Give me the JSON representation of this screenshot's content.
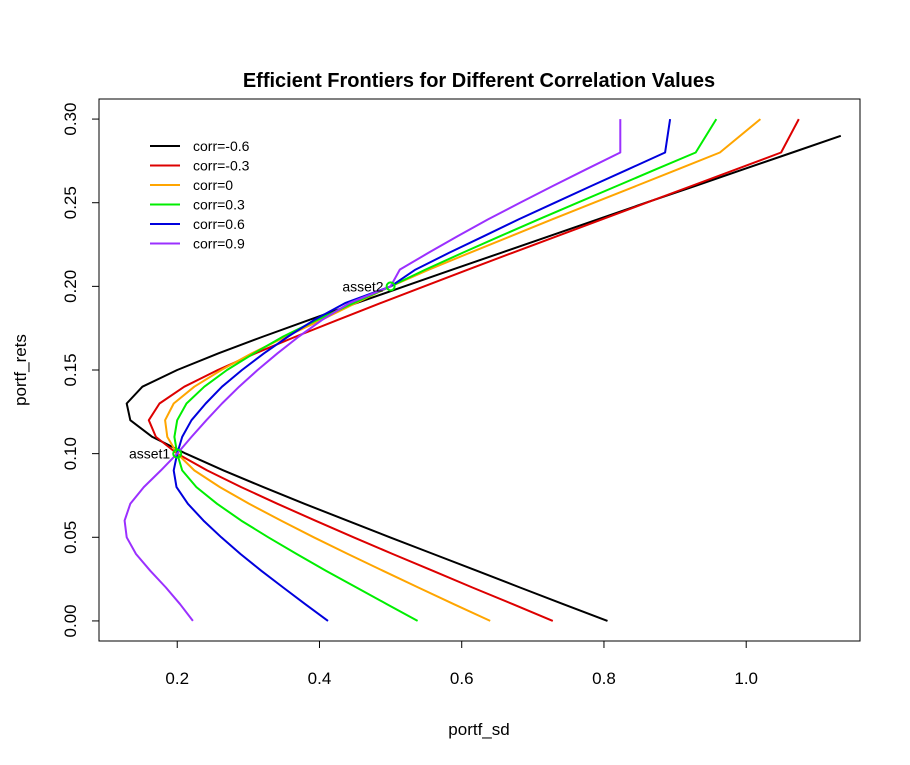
{
  "chart_data": {
    "type": "line",
    "title": "Efficient Frontiers for Different Correlation Values",
    "xlabel": "portf_sd",
    "ylabel": "portf_rets",
    "xlim": [
      0.09,
      1.16
    ],
    "ylim": [
      -0.012,
      0.312
    ],
    "x_ticks": [
      0.2,
      0.4,
      0.6,
      0.8,
      1.0
    ],
    "x_tick_labels": [
      "0.2",
      "0.4",
      "0.6",
      "0.8",
      "1.0"
    ],
    "y_ticks": [
      0.0,
      0.05,
      0.1,
      0.15,
      0.2,
      0.25,
      0.3
    ],
    "y_tick_labels": [
      "0.00",
      "0.05",
      "0.10",
      "0.15",
      "0.20",
      "0.25",
      "0.30"
    ],
    "grid": false,
    "legend": "top-left",
    "series": [
      {
        "name": "corr=-0.6",
        "color": "#000000",
        "x": [
          0.805,
          0.743,
          0.682,
          0.621,
          0.56,
          0.499,
          0.439,
          0.379,
          0.321,
          0.265,
          0.212,
          0.165,
          0.134,
          0.129,
          0.151,
          0.2,
          0.258,
          0.321,
          0.386,
          0.452,
          0.519,
          0.587,
          0.655,
          0.723,
          0.791,
          0.859,
          0.928,
          0.996,
          1.065,
          1.133
        ],
        "y": [
          0.0,
          0.01,
          0.02,
          0.03,
          0.04,
          0.05,
          0.06,
          0.07,
          0.08,
          0.09,
          0.1,
          0.11,
          0.12,
          0.13,
          0.14,
          0.15,
          0.16,
          0.17,
          0.18,
          0.19,
          0.2,
          0.21,
          0.22,
          0.23,
          0.24,
          0.25,
          0.26,
          0.27,
          0.28,
          0.29
        ]
      },
      {
        "name": "corr=-0.3",
        "color": "#dd0000",
        "x": [
          0.728,
          0.672,
          0.615,
          0.559,
          0.503,
          0.448,
          0.394,
          0.341,
          0.29,
          0.242,
          0.2,
          0.17,
          0.16,
          0.175,
          0.21,
          0.257,
          0.31,
          0.367,
          0.426,
          0.486,
          0.547,
          0.609,
          0.671,
          0.734,
          0.797,
          0.86,
          0.923,
          0.986,
          1.049,
          1.074
        ],
        "y": [
          0.0,
          0.01,
          0.02,
          0.03,
          0.04,
          0.05,
          0.06,
          0.07,
          0.08,
          0.09,
          0.1,
          0.11,
          0.12,
          0.13,
          0.14,
          0.15,
          0.16,
          0.17,
          0.18,
          0.19,
          0.2,
          0.21,
          0.22,
          0.23,
          0.24,
          0.25,
          0.26,
          0.27,
          0.28,
          0.3
        ]
      },
      {
        "name": "corr=0",
        "color": "#ffa500",
        "x": [
          0.64,
          0.589,
          0.539,
          0.489,
          0.44,
          0.392,
          0.346,
          0.301,
          0.26,
          0.224,
          0.2,
          0.186,
          0.183,
          0.195,
          0.224,
          0.262,
          0.305,
          0.353,
          0.403,
          0.451,
          0.5,
          0.554,
          0.611,
          0.669,
          0.727,
          0.786,
          0.845,
          0.904,
          0.963,
          1.02
        ],
        "y": [
          0.0,
          0.01,
          0.02,
          0.03,
          0.04,
          0.05,
          0.06,
          0.07,
          0.08,
          0.09,
          0.1,
          0.11,
          0.12,
          0.13,
          0.14,
          0.15,
          0.16,
          0.17,
          0.18,
          0.19,
          0.2,
          0.21,
          0.22,
          0.23,
          0.24,
          0.25,
          0.26,
          0.27,
          0.28,
          0.3
        ]
      },
      {
        "name": "corr=0.3",
        "color": "#00ee00",
        "x": [
          0.538,
          0.495,
          0.452,
          0.409,
          0.368,
          0.328,
          0.29,
          0.256,
          0.227,
          0.207,
          0.2,
          0.196,
          0.2,
          0.213,
          0.238,
          0.27,
          0.308,
          0.349,
          0.397,
          0.448,
          0.5,
          0.549,
          0.601,
          0.654,
          0.708,
          0.763,
          0.818,
          0.873,
          0.929,
          0.958
        ],
        "y": [
          0.0,
          0.01,
          0.02,
          0.03,
          0.04,
          0.05,
          0.06,
          0.07,
          0.08,
          0.09,
          0.1,
          0.11,
          0.12,
          0.13,
          0.14,
          0.15,
          0.16,
          0.17,
          0.18,
          0.19,
          0.2,
          0.21,
          0.22,
          0.23,
          0.24,
          0.25,
          0.26,
          0.27,
          0.28,
          0.3
        ]
      },
      {
        "name": "corr=0.6",
        "color": "#0000dd",
        "x": [
          0.412,
          0.38,
          0.349,
          0.318,
          0.289,
          0.262,
          0.237,
          0.215,
          0.199,
          0.195,
          0.2,
          0.207,
          0.22,
          0.24,
          0.263,
          0.291,
          0.322,
          0.356,
          0.393,
          0.436,
          0.5,
          0.535,
          0.582,
          0.631,
          0.68,
          0.731,
          0.782,
          0.834,
          0.886,
          0.893
        ],
        "y": [
          0.0,
          0.01,
          0.02,
          0.03,
          0.04,
          0.05,
          0.06,
          0.07,
          0.08,
          0.09,
          0.1,
          0.11,
          0.12,
          0.13,
          0.14,
          0.15,
          0.16,
          0.17,
          0.18,
          0.19,
          0.2,
          0.21,
          0.22,
          0.23,
          0.24,
          0.25,
          0.26,
          0.27,
          0.28,
          0.3
        ]
      },
      {
        "name": "corr=0.9",
        "color": "#9b30ff",
        "x": [
          0.222,
          0.204,
          0.184,
          0.162,
          0.142,
          0.129,
          0.126,
          0.134,
          0.153,
          0.177,
          0.2,
          0.22,
          0.241,
          0.263,
          0.287,
          0.313,
          0.341,
          0.371,
          0.404,
          0.442,
          0.5,
          0.513,
          0.553,
          0.594,
          0.637,
          0.682,
          0.728,
          0.775,
          0.823,
          0.823
        ],
        "y": [
          0.0,
          0.01,
          0.02,
          0.03,
          0.04,
          0.05,
          0.06,
          0.07,
          0.08,
          0.09,
          0.1,
          0.11,
          0.12,
          0.13,
          0.14,
          0.15,
          0.16,
          0.17,
          0.18,
          0.19,
          0.2,
          0.21,
          0.22,
          0.23,
          0.24,
          0.25,
          0.26,
          0.27,
          0.28,
          0.3
        ]
      }
    ],
    "points": [
      {
        "label": "asset1",
        "x": 0.2,
        "y": 0.1,
        "color": "#00ee00"
      },
      {
        "label": "asset2",
        "x": 0.5,
        "y": 0.2,
        "color": "#00ee00"
      }
    ]
  }
}
